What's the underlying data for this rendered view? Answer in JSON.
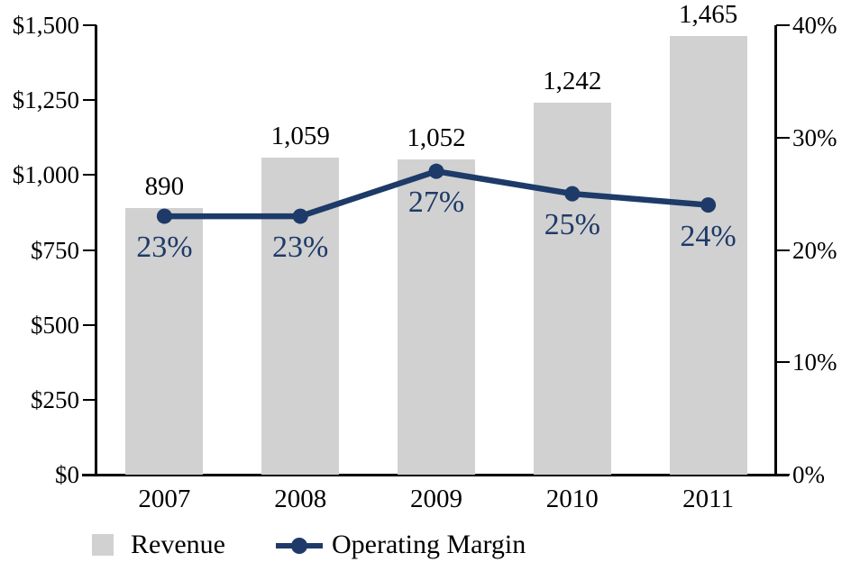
{
  "chart_data": {
    "type": "bar+line combo",
    "title": "",
    "categories": [
      "2007",
      "2008",
      "2009",
      "2010",
      "2011"
    ],
    "series": [
      {
        "name": "Revenue",
        "type": "bar",
        "axis": "left",
        "values": [
          890,
          1059,
          1052,
          1242,
          1465
        ],
        "labels": [
          "890",
          "1,059",
          "1,052",
          "1,242",
          "1,465"
        ],
        "color": "#D1D1D1"
      },
      {
        "name": "Operating Margin",
        "type": "line",
        "axis": "right",
        "values": [
          23,
          23,
          27,
          25,
          24
        ],
        "labels": [
          "23%",
          "23%",
          "27%",
          "25%",
          "24%"
        ],
        "color": "#1E3A68"
      }
    ],
    "left_axis": {
      "range": [
        0,
        1500
      ],
      "ticks": [
        0,
        250,
        500,
        750,
        1000,
        1250,
        1500
      ],
      "tick_labels": [
        "$0",
        "$250",
        "$500",
        "$750",
        "$1,000",
        "$1,250",
        "$1,500"
      ]
    },
    "right_axis": {
      "range": [
        0,
        40
      ],
      "ticks": [
        0,
        10,
        20,
        30,
        40
      ],
      "tick_labels": [
        "0%",
        "10%",
        "20%",
        "30%",
        "40%"
      ]
    },
    "legend": {
      "position": "bottom",
      "items": [
        {
          "label": "Revenue",
          "swatch": "bar"
        },
        {
          "label": "Operating Margin",
          "swatch": "line-marker"
        }
      ]
    },
    "grid": false
  },
  "colors": {
    "background": "#FFFFFF",
    "bar": "#D1D1D1",
    "line": "#1E3A68",
    "axis": "#000000",
    "value_label": "#000000",
    "percent_label": "#1E3A68"
  }
}
